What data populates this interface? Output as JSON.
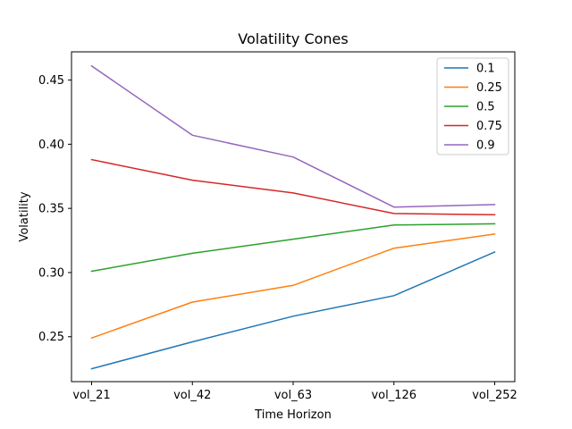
{
  "chart_data": {
    "type": "line",
    "title": "Volatility Cones",
    "xlabel": "Time Horizon",
    "ylabel": "Volatility",
    "categories": [
      "vol_21",
      "vol_42",
      "vol_63",
      "vol_126",
      "vol_252"
    ],
    "ylim": [
      0.215,
      0.472
    ],
    "yticks": [
      "0.25",
      "0.30",
      "0.35",
      "0.40",
      "0.45"
    ],
    "legend_position": "top-right",
    "grid": false,
    "series": [
      {
        "name": "0.1",
        "color": "#1f77b4",
        "values": [
          0.225,
          0.246,
          0.266,
          0.282,
          0.316
        ]
      },
      {
        "name": "0.25",
        "color": "#ff7f0e",
        "values": [
          0.249,
          0.277,
          0.29,
          0.319,
          0.33
        ]
      },
      {
        "name": "0.5",
        "color": "#2ca02c",
        "values": [
          0.301,
          0.315,
          0.326,
          0.337,
          0.338
        ]
      },
      {
        "name": "0.75",
        "color": "#d62728",
        "values": [
          0.388,
          0.372,
          0.362,
          0.346,
          0.345
        ]
      },
      {
        "name": "0.9",
        "color": "#9467bd",
        "values": [
          0.461,
          0.407,
          0.39,
          0.351,
          0.353
        ]
      }
    ]
  }
}
